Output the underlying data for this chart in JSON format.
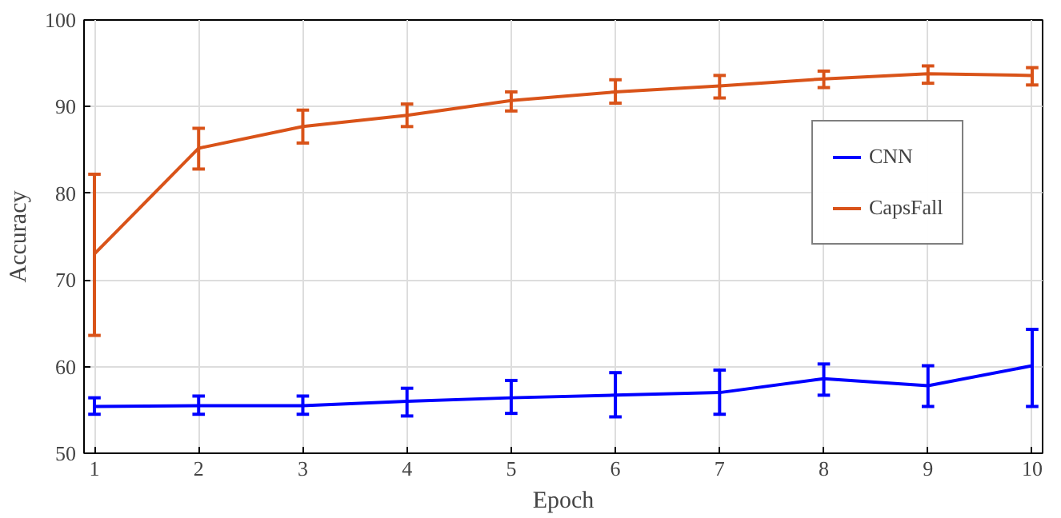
{
  "chart_data": {
    "type": "line",
    "xlabel": "Epoch",
    "ylabel": "Accuracy",
    "x": [
      1,
      2,
      3,
      4,
      5,
      6,
      7,
      8,
      9,
      10
    ],
    "series": [
      {
        "name": "CNN",
        "color": "#0000ff",
        "values": [
          55.4,
          55.5,
          55.5,
          56.0,
          56.4,
          56.7,
          57.0,
          58.6,
          57.8,
          60.1
        ],
        "errors": [
          [
            54.5,
            56.4
          ],
          [
            54.5,
            56.6
          ],
          [
            54.5,
            56.6
          ],
          [
            54.3,
            57.5
          ],
          [
            54.6,
            58.4
          ],
          [
            54.2,
            59.3
          ],
          [
            54.5,
            59.6
          ],
          [
            56.7,
            60.3
          ],
          [
            55.4,
            60.1
          ],
          [
            55.4,
            64.3
          ]
        ]
      },
      {
        "name": "CapsFall",
        "color": "#d95319",
        "values": [
          73.0,
          85.2,
          87.7,
          89.0,
          90.7,
          91.7,
          92.4,
          93.2,
          93.8,
          93.6
        ],
        "errors": [
          [
            63.6,
            82.2
          ],
          [
            82.8,
            87.5
          ],
          [
            85.8,
            89.6
          ],
          [
            87.7,
            90.3
          ],
          [
            89.5,
            91.7
          ],
          [
            90.4,
            93.1
          ],
          [
            91.0,
            93.6
          ],
          [
            92.2,
            94.1
          ],
          [
            92.7,
            94.7
          ],
          [
            92.5,
            94.5
          ]
        ]
      }
    ],
    "xlim": [
      0.9,
      10.1
    ],
    "ylim": [
      50,
      100
    ],
    "xticks": [
      1,
      2,
      3,
      4,
      5,
      6,
      7,
      8,
      9,
      10
    ],
    "yticks": [
      50,
      60,
      70,
      80,
      90,
      100
    ],
    "grid": true,
    "legend": "right",
    "marker": "none",
    "line_style": "solid"
  }
}
